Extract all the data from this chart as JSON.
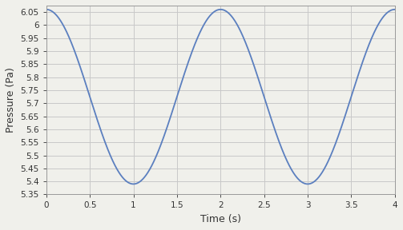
{
  "title": "",
  "xlabel": "Time (s)",
  "ylabel": "Pressure (Pa)",
  "x_min": 0,
  "x_max": 4,
  "y_min": 5.35,
  "y_max": 6.075,
  "amplitude": 0.335,
  "mean": 5.725,
  "frequency": 0.5,
  "phase": 0.0,
  "line_color": "#5b7fbf",
  "background_color": "#f0f0eb",
  "grid_color": "#c8c8c8",
  "yticks": [
    5.35,
    5.4,
    5.45,
    5.5,
    5.55,
    5.6,
    5.65,
    5.7,
    5.75,
    5.8,
    5.85,
    5.9,
    5.95,
    6.0,
    6.05
  ],
  "xticks": [
    0,
    0.5,
    1,
    1.5,
    2,
    2.5,
    3,
    3.5,
    4
  ],
  "line_width": 1.3,
  "num_points": 2000
}
